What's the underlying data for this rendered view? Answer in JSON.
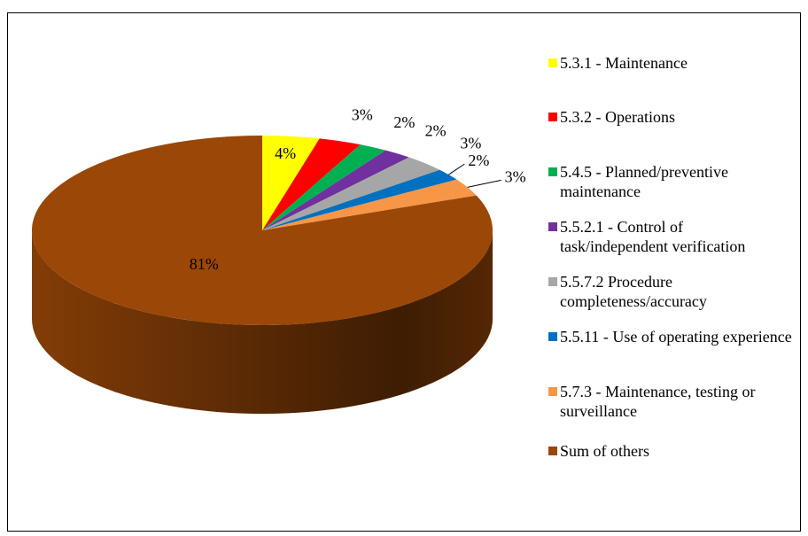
{
  "chart_data": {
    "type": "pie",
    "categories": [
      "5.3.1 - Maintenance",
      "5.3.2 - Operations",
      "5.4.5 - Planned/preventive maintenance",
      "5.5.2.1 - Control of task/independent verification",
      "5.5.7.2 Procedure completeness/accuracy",
      "5.5.11 - Use of operating experience",
      "5.7.3 - Maintenance, testing or surveillance",
      "Sum of others"
    ],
    "values": [
      4,
      3,
      2,
      2,
      3,
      2,
      3,
      81
    ],
    "value_labels": [
      "4%",
      "3%",
      "2%",
      "2%",
      "3%",
      "2%",
      "3%",
      "81%"
    ],
    "colors": [
      "#ffff00",
      "#ff0000",
      "#00b050",
      "#7030a0",
      "#a6a6a6",
      "#0070c0",
      "#f79646",
      "#9a4708"
    ],
    "legend": "right"
  }
}
